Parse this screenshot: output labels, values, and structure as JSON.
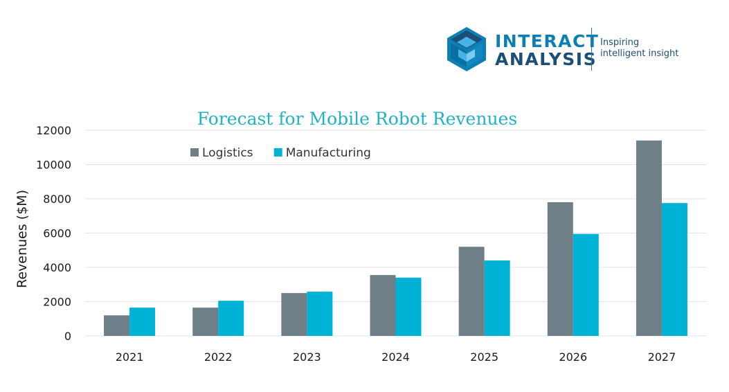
{
  "brand": {
    "line1": "INTERACT",
    "line2": "ANALYSIS",
    "tagline1": "Inspiring",
    "tagline2": "intelligent insight"
  },
  "colors": {
    "logistics": "#6e7f87",
    "manufacturing": "#00b2d6",
    "title": "#21b2c5",
    "grid": "#e3e3e3",
    "brand_blue": "#0d7fb2",
    "brand_navy": "#1b4f78"
  },
  "chart_data": {
    "type": "bar",
    "title": "Forecast for Mobile Robot Revenues",
    "xlabel": "",
    "ylabel": "Revenues ($M)",
    "ylim": [
      0,
      12000
    ],
    "yticks": [
      0,
      2000,
      4000,
      6000,
      8000,
      10000,
      12000
    ],
    "grid": true,
    "legend_position": "top-left",
    "categories": [
      "2021",
      "2022",
      "2023",
      "2024",
      "2025",
      "2026",
      "2027"
    ],
    "series": [
      {
        "name": "Logistics",
        "color": "#6e7f87",
        "values": [
          1200,
          1650,
          2500,
          3550,
          5200,
          7800,
          11400
        ]
      },
      {
        "name": "Manufacturing",
        "color": "#00b2d6",
        "values": [
          1650,
          2050,
          2580,
          3400,
          4400,
          5950,
          7750
        ]
      }
    ]
  }
}
